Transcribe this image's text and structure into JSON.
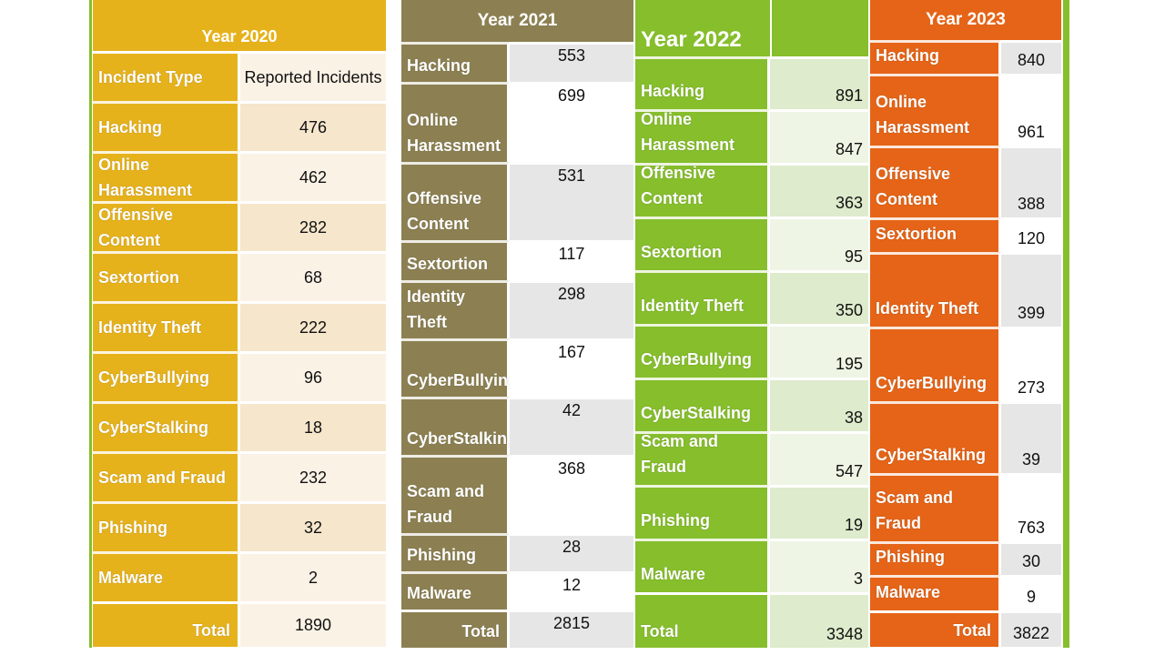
{
  "tables": [
    {
      "title": "Year 2020",
      "col_headers": [
        "Incident Type",
        "Reported Incidents"
      ],
      "rows": [
        {
          "type": "Hacking",
          "value": "476"
        },
        {
          "type": "Online Harassment",
          "value": "462"
        },
        {
          "type": "Offensive Content",
          "value": "282"
        },
        {
          "type": "Sextortion",
          "value": "68"
        },
        {
          "type": "Identity Theft",
          "value": "222"
        },
        {
          "type": "CyberBullying",
          "value": "96"
        },
        {
          "type": "CyberStalking",
          "value": "18"
        },
        {
          "type": "Scam and Fraud",
          "value": "232"
        },
        {
          "type": "Phishing",
          "value": "32"
        },
        {
          "type": "Malware",
          "value": "2"
        }
      ],
      "total_label": "Total",
      "total_value": "1890",
      "colors": {
        "label_bg": "#E6B21C",
        "value_light": "#FBF2E6",
        "value_dark": "#F6E6CC"
      }
    },
    {
      "title": "Year 2021",
      "rows": [
        {
          "type": "Hacking",
          "value": "553"
        },
        {
          "type": "Online Harassment",
          "value": "699"
        },
        {
          "type": "Offensive Content",
          "value": "531"
        },
        {
          "type": "Sextortion",
          "value": "117"
        },
        {
          "type": "Identity Theft",
          "value": "298"
        },
        {
          "type": "CyberBullying",
          "value": "167"
        },
        {
          "type": "CyberStalking",
          "value": "42"
        },
        {
          "type": "Scam and Fraud",
          "value": "368"
        },
        {
          "type": "Phishing",
          "value": "28"
        },
        {
          "type": "Malware",
          "value": "12"
        }
      ],
      "total_label": "Total",
      "total_value": "2815",
      "colors": {
        "label_bg": "#8C8052",
        "value_light": "#FFFFFF",
        "value_dark": "#E6E6E6"
      }
    },
    {
      "title": "Year 2022",
      "rows": [
        {
          "type": "Hacking",
          "value": "891"
        },
        {
          "type": "Online Harassment",
          "value": "847"
        },
        {
          "type": "Offensive Content",
          "value": "363"
        },
        {
          "type": "Sextortion",
          "value": "95"
        },
        {
          "type": "Identity Theft",
          "value": "350"
        },
        {
          "type": "CyberBullying",
          "value": "195"
        },
        {
          "type": "CyberStalking",
          "value": "38"
        },
        {
          "type": "Scam and Fraud",
          "value": "547"
        },
        {
          "type": "Phishing",
          "value": "19"
        },
        {
          "type": "Malware",
          "value": "3"
        }
      ],
      "total_label": "Total",
      "total_value": "3348",
      "colors": {
        "label_bg": "#86BE2C",
        "value_light": "#EEF5E4",
        "value_dark": "#DEEBCC"
      }
    },
    {
      "title": "Year 2023",
      "rows": [
        {
          "type": "Hacking",
          "value": "840"
        },
        {
          "type": "Online Harassment",
          "value": "961"
        },
        {
          "type": "Offensive Content",
          "value": "388"
        },
        {
          "type": "Sextortion",
          "value": "120"
        },
        {
          "type": "Identity Theft",
          "value": "399"
        },
        {
          "type": "CyberBullying",
          "value": "273"
        },
        {
          "type": "CyberStalking",
          "value": "39"
        },
        {
          "type": "Scam and Fraud",
          "value": "763"
        },
        {
          "type": "Phishing",
          "value": "30"
        },
        {
          "type": "Malware",
          "value": "9"
        }
      ],
      "total_label": "Total",
      "total_value": "3822",
      "colors": {
        "label_bg": "#E56417",
        "value_light": "#FFFFFF",
        "value_dark": "#E6E6E6"
      }
    }
  ]
}
